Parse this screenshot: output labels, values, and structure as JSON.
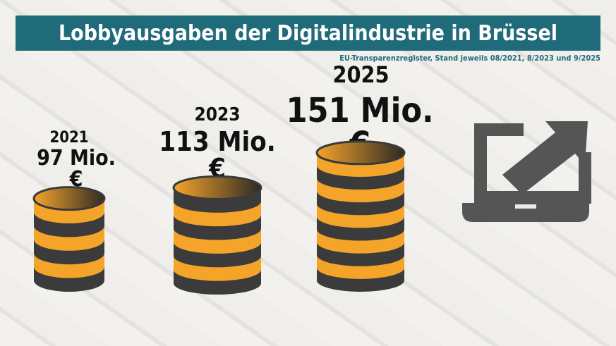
{
  "title": "Lobbyausgaben der Digitalindustrie in Brüssel",
  "source": "EU-Transparenzregister, Stand jeweils 08/2021, 8/2023 und 9/2025",
  "colors": {
    "title_bar": "#1f6b7a",
    "coin_orange": "#f5a42a",
    "coin_dark": "#3b3b3b",
    "icon": "#555555"
  },
  "icon": "laptop-trend-up-arrow-icon",
  "chart_data": {
    "type": "bar",
    "style": "coin stacks",
    "title": "Lobbyausgaben der Digitalindustrie in Brüssel",
    "categories": [
      "2021",
      "2023",
      "2025"
    ],
    "values": [
      97,
      113,
      151
    ],
    "unit": "Mio. €",
    "labels": [
      "97 Mio. €",
      "113 Mio. €",
      "151 Mio. €"
    ]
  }
}
